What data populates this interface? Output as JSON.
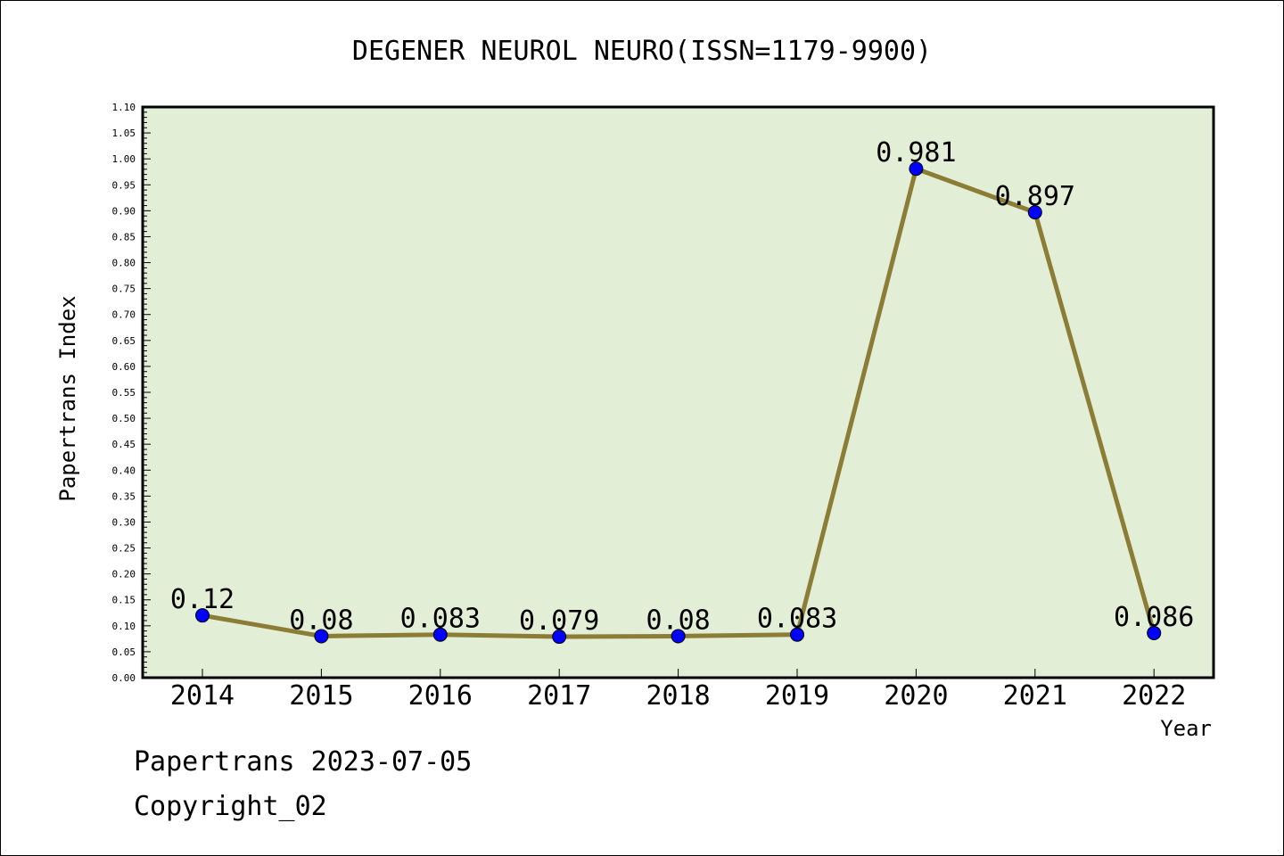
{
  "chart_data": {
    "type": "line",
    "title": "DEGENER NEUROL NEURO(ISSN=1179-9900)",
    "xlabel": "Year",
    "ylabel": "Papertrans Index",
    "categories": [
      "2014",
      "2015",
      "2016",
      "2017",
      "2018",
      "2019",
      "2020",
      "2021",
      "2022"
    ],
    "values": [
      0.12,
      0.08,
      0.083,
      0.079,
      0.08,
      0.083,
      0.981,
      0.897,
      0.086
    ],
    "data_labels": [
      "0.12",
      "0.08",
      "0.083",
      "0.079",
      "0.08",
      "0.083",
      "0.981",
      "0.897",
      "0.086"
    ],
    "ylim": [
      0,
      1.1
    ],
    "yticks": [
      "0.00",
      "0.05",
      "0.10",
      "0.15",
      "0.20",
      "0.25",
      "0.30",
      "0.35",
      "0.40",
      "0.45",
      "0.50",
      "0.55",
      "0.60",
      "0.65",
      "0.70",
      "0.75",
      "0.80",
      "0.85",
      "0.90",
      "0.95",
      "1.00",
      "1.05",
      "1.10"
    ],
    "grid": false,
    "colors": {
      "plot_bg": "#e2efd6",
      "line": "#8b7d35",
      "marker": "#0000ff"
    }
  },
  "footer": {
    "line1": "Papertrans 2023-07-05",
    "line2": "Copyright_02"
  }
}
